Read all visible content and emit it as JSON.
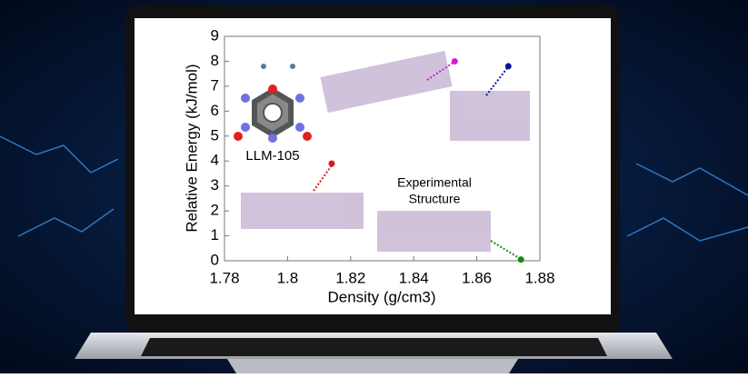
{
  "chart_data": {
    "type": "scatter",
    "x": [
      1.853,
      1.87,
      1.814,
      1.874
    ],
    "values": [
      8.0,
      7.8,
      3.9,
      0.05
    ],
    "colors": [
      "#d21ed2",
      "#10109a",
      "#d81818",
      "#138a13"
    ],
    "xlabel": "Density (g/cm3)",
    "ylabel": "Relative Energy (kJ/mol)",
    "xlim": [
      1.78,
      1.88
    ],
    "xticks": [
      1.78,
      1.8,
      1.82,
      1.84,
      1.86,
      1.88
    ],
    "ylim": [
      0,
      9
    ],
    "yticks": [
      0,
      1,
      2,
      3,
      4,
      5,
      6,
      7,
      8,
      9
    ],
    "annotations": [
      "LLM-105",
      "Experimental",
      "Structure"
    ]
  }
}
